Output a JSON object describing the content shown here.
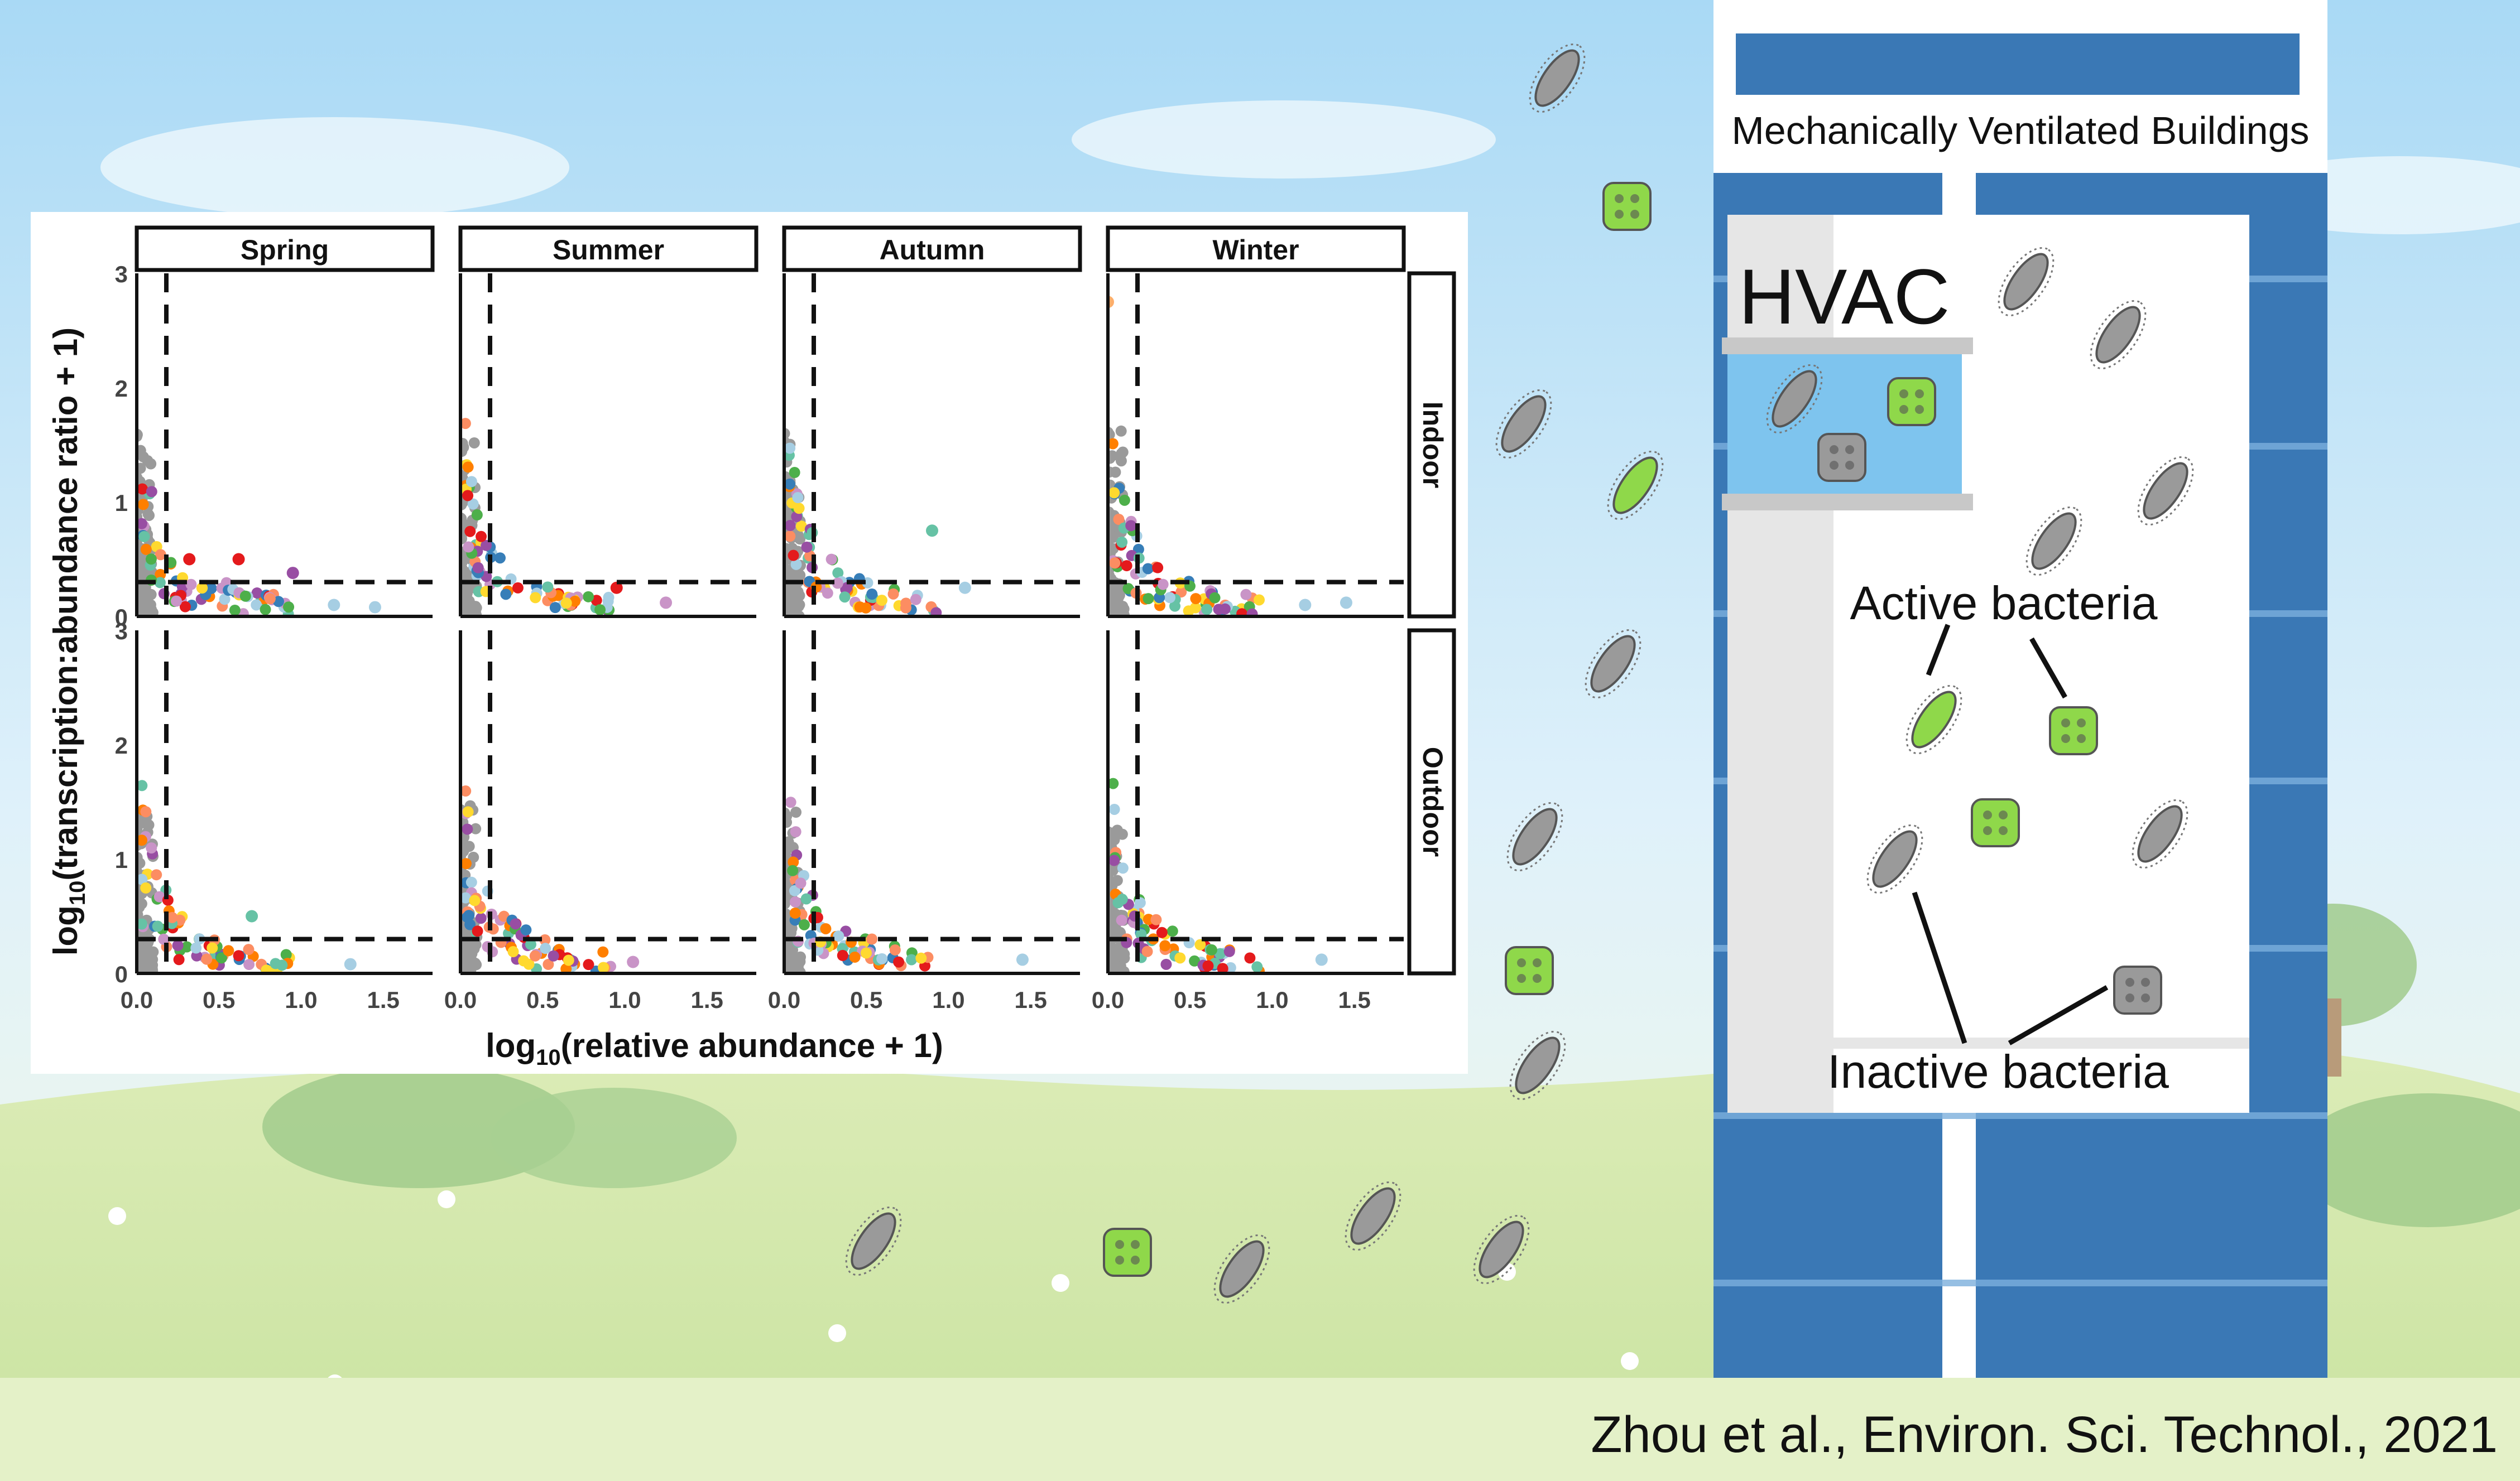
{
  "figure": {
    "xlabel_main": "log",
    "xlabel_sub": "10",
    "xlabel_rest": "(relative abundance + 1)",
    "ylabel_main": "log",
    "ylabel_sub": "10",
    "ylabel_rest": "(transcription:abundance ratio + 1)",
    "x_ticks": [
      "0.0",
      "0.5",
      "1.0",
      "1.5"
    ],
    "y_ticks": [
      "0",
      "1",
      "2",
      "3"
    ]
  },
  "building": {
    "title": "Mechanically Ventilated Buildings",
    "hvac": "HVAC",
    "active_label": "Active bacteria",
    "inactive_label": "Inactive bacteria"
  },
  "citation": "Zhou et al., Environ. Sci. Technol., 2021",
  "colors": {
    "sky_top": "#bfe2f7",
    "grass": "#d9ebb5",
    "building_blue": "#3a78b5",
    "active_green": "#8fd84a",
    "inactive_gray": "#9a9a9a",
    "hvac_blue": "#7ec4ee"
  },
  "chart_data": {
    "type": "scatter",
    "facets_columns": [
      "Spring",
      "Summer",
      "Autumn",
      "Winter"
    ],
    "facets_rows": [
      "Indoor",
      "Outdoor"
    ],
    "xlim": [
      0,
      1.8
    ],
    "ylim": [
      0,
      3
    ],
    "x_threshold": 0.18,
    "y_threshold": 0.3,
    "point_colors": [
      "#999999",
      "#e41a1c",
      "#ffd92f",
      "#ff7f00",
      "#66c2a5",
      "#4daf4a",
      "#984ea3",
      "#c994c7",
      "#fc8d62",
      "#377eb8",
      "#a6cee3"
    ],
    "highlight_points": [
      {
        "facet": "Spring-Indoor",
        "x": 0.32,
        "y": 0.5,
        "color": "#e41a1c"
      },
      {
        "facet": "Spring-Indoor",
        "x": 0.62,
        "y": 0.5,
        "color": "#e41a1c"
      },
      {
        "facet": "Spring-Indoor",
        "x": 0.95,
        "y": 0.38,
        "color": "#984ea3"
      },
      {
        "facet": "Spring-Indoor",
        "x": 1.2,
        "y": 0.1,
        "color": "#a6cee3"
      },
      {
        "facet": "Spring-Indoor",
        "x": 1.45,
        "y": 0.08,
        "color": "#a6cee3"
      },
      {
        "facet": "Summer-Indoor",
        "x": 0.95,
        "y": 0.25,
        "color": "#e41a1c"
      },
      {
        "facet": "Summer-Indoor",
        "x": 1.25,
        "y": 0.12,
        "color": "#c994c7"
      },
      {
        "facet": "Autumn-Indoor",
        "x": 0.9,
        "y": 0.75,
        "color": "#66c2a5"
      },
      {
        "facet": "Autumn-Indoor",
        "x": 1.1,
        "y": 0.25,
        "color": "#a6cee3"
      },
      {
        "facet": "Winter-Indoor",
        "x": 1.2,
        "y": 0.1,
        "color": "#a6cee3"
      },
      {
        "facet": "Winter-Indoor",
        "x": 1.45,
        "y": 0.12,
        "color": "#a6cee3"
      },
      {
        "facet": "Winter-Indoor",
        "x": 0.0,
        "y": 2.75,
        "color": "#fdae6b"
      },
      {
        "facet": "Spring-Outdoor",
        "x": 1.3,
        "y": 0.08,
        "color": "#a6cee3"
      },
      {
        "facet": "Spring-Outdoor",
        "x": 0.7,
        "y": 0.5,
        "color": "#66c2a5"
      },
      {
        "facet": "Summer-Outdoor",
        "x": 1.05,
        "y": 0.1,
        "color": "#c994c7"
      },
      {
        "facet": "Autumn-Outdoor",
        "x": 1.45,
        "y": 0.12,
        "color": "#a6cee3"
      },
      {
        "facet": "Winter-Outdoor",
        "x": 1.3,
        "y": 0.12,
        "color": "#a6cee3"
      }
    ]
  }
}
